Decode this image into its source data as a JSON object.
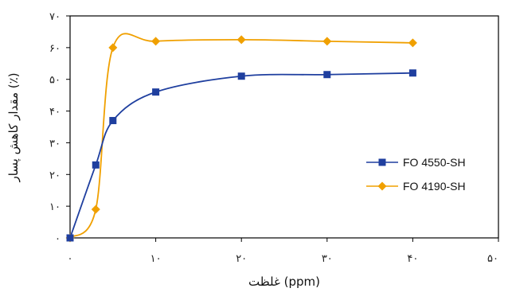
{
  "chart_data": {
    "type": "line",
    "xlabel": "غلظت (ppm)",
    "ylabel": "مقدار کاهش پسار (٪)",
    "xlim": [
      0,
      50
    ],
    "ylim": [
      0,
      70
    ],
    "x_ticks": [
      0,
      10,
      20,
      30,
      40,
      50
    ],
    "x_tick_labels": [
      "۰",
      "۱۰",
      "۲۰",
      "۳۰",
      "۴۰",
      "۵۰"
    ],
    "y_ticks": [
      0,
      10,
      20,
      30,
      40,
      50,
      60,
      70
    ],
    "y_tick_labels": [
      "۰",
      "۱۰",
      "۲۰",
      "۳۰",
      "۴۰",
      "۵۰",
      "۶۰",
      "۷۰"
    ],
    "grid": false,
    "legend_position": "right",
    "series": [
      {
        "name": "FO 4550-SH",
        "color": "#1f3f9f",
        "marker": "square",
        "x": [
          0,
          3,
          5,
          10,
          20,
          30,
          40
        ],
        "y": [
          0,
          23,
          37,
          46,
          51,
          51.5,
          52
        ]
      },
      {
        "name": "FO 4190-SH",
        "color": "#f0a000",
        "marker": "diamond",
        "x": [
          0,
          3,
          5,
          10,
          20,
          30,
          40
        ],
        "y": [
          0,
          9,
          60,
          62,
          62.5,
          62,
          61.5
        ]
      }
    ]
  }
}
